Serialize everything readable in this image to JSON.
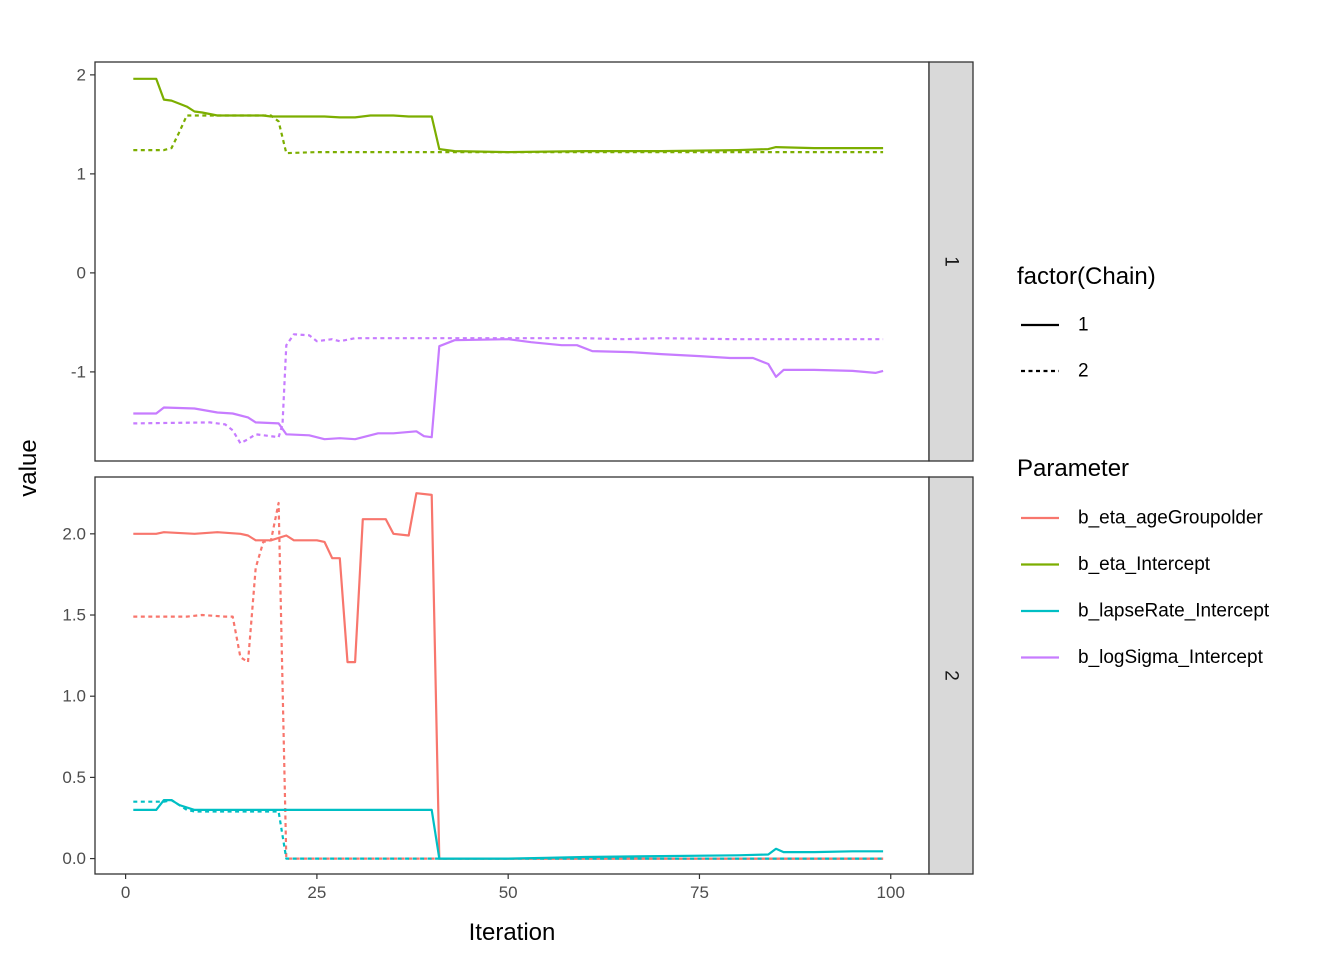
{
  "chart_data": {
    "type": "line",
    "xlabel": "Iteration",
    "ylabel": "value",
    "xlim": [
      -4,
      105
    ],
    "xticks": [
      0,
      25,
      50,
      75,
      100
    ],
    "grid": false,
    "legend_position": "right",
    "linetype_legend": {
      "title": "factor(Chain)",
      "entries": [
        {
          "label": "1",
          "dash": "solid"
        },
        {
          "label": "2",
          "dash": "dotted"
        }
      ]
    },
    "color_legend": {
      "title": "Parameter",
      "entries": [
        {
          "label": "b_eta_ageGroupolder",
          "color": "#F8766D"
        },
        {
          "label": "b_eta_Intercept",
          "color": "#7CAE00"
        },
        {
          "label": "b_lapseRate_Intercept",
          "color": "#00BFC4"
        },
        {
          "label": "b_logSigma_Intercept",
          "color": "#C77CFF"
        }
      ]
    },
    "panels": [
      {
        "strip": "1",
        "ylim": [
          -1.9,
          2.13
        ],
        "yticks": [
          2,
          1,
          0,
          -1
        ],
        "yticklabels": [
          "2",
          "1",
          "0",
          "-1"
        ],
        "series": [
          {
            "parameter": "b_eta_Intercept",
            "chain": "1",
            "color": "#7CAE00",
            "dash": "solid",
            "points": [
              [
                1,
                1.96
              ],
              [
                4,
                1.96
              ],
              [
                5,
                1.75
              ],
              [
                6,
                1.74
              ],
              [
                7,
                1.71
              ],
              [
                8,
                1.68
              ],
              [
                9,
                1.63
              ],
              [
                10,
                1.62
              ],
              [
                12,
                1.59
              ],
              [
                16,
                1.59
              ],
              [
                18,
                1.59
              ],
              [
                19,
                1.58
              ],
              [
                20,
                1.58
              ],
              [
                22,
                1.58
              ],
              [
                26,
                1.58
              ],
              [
                28,
                1.57
              ],
              [
                30,
                1.57
              ],
              [
                32,
                1.59
              ],
              [
                35,
                1.59
              ],
              [
                37,
                1.58
              ],
              [
                40,
                1.58
              ],
              [
                41,
                1.25
              ],
              [
                43,
                1.23
              ],
              [
                50,
                1.22
              ],
              [
                60,
                1.23
              ],
              [
                70,
                1.23
              ],
              [
                80,
                1.24
              ],
              [
                84,
                1.25
              ],
              [
                85,
                1.27
              ],
              [
                90,
                1.26
              ],
              [
                99,
                1.26
              ]
            ]
          },
          {
            "parameter": "b_eta_Intercept",
            "chain": "2",
            "color": "#7CAE00",
            "dash": "dotted",
            "points": [
              [
                1,
                1.24
              ],
              [
                5,
                1.24
              ],
              [
                6,
                1.26
              ],
              [
                7,
                1.42
              ],
              [
                8,
                1.59
              ],
              [
                12,
                1.59
              ],
              [
                16,
                1.59
              ],
              [
                19,
                1.59
              ],
              [
                20,
                1.53
              ],
              [
                21,
                1.21
              ],
              [
                25,
                1.22
              ],
              [
                30,
                1.22
              ],
              [
                40,
                1.22
              ],
              [
                50,
                1.22
              ],
              [
                60,
                1.22
              ],
              [
                70,
                1.22
              ],
              [
                80,
                1.22
              ],
              [
                90,
                1.22
              ],
              [
                99,
                1.22
              ]
            ]
          },
          {
            "parameter": "b_logSigma_Intercept",
            "chain": "1",
            "color": "#C77CFF",
            "dash": "solid",
            "points": [
              [
                1,
                -1.42
              ],
              [
                4,
                -1.42
              ],
              [
                5,
                -1.36
              ],
              [
                9,
                -1.37
              ],
              [
                12,
                -1.41
              ],
              [
                14,
                -1.42
              ],
              [
                16,
                -1.46
              ],
              [
                17,
                -1.51
              ],
              [
                20,
                -1.52
              ],
              [
                21,
                -1.63
              ],
              [
                24,
                -1.64
              ],
              [
                26,
                -1.68
              ],
              [
                28,
                -1.67
              ],
              [
                30,
                -1.68
              ],
              [
                33,
                -1.62
              ],
              [
                35,
                -1.62
              ],
              [
                38,
                -1.6
              ],
              [
                39,
                -1.65
              ],
              [
                40,
                -1.66
              ],
              [
                41,
                -0.74
              ],
              [
                43,
                -0.68
              ],
              [
                50,
                -0.67
              ],
              [
                53,
                -0.7
              ],
              [
                57,
                -0.73
              ],
              [
                59,
                -0.73
              ],
              [
                61,
                -0.79
              ],
              [
                66,
                -0.8
              ],
              [
                70,
                -0.82
              ],
              [
                75,
                -0.84
              ],
              [
                79,
                -0.86
              ],
              [
                82,
                -0.86
              ],
              [
                84,
                -0.92
              ],
              [
                85,
                -1.05
              ],
              [
                86,
                -0.98
              ],
              [
                90,
                -0.98
              ],
              [
                95,
                -0.99
              ],
              [
                98,
                -1.01
              ],
              [
                99,
                -0.99
              ]
            ]
          },
          {
            "parameter": "b_logSigma_Intercept",
            "chain": "2",
            "color": "#C77CFF",
            "dash": "dotted",
            "points": [
              [
                1,
                -1.52
              ],
              [
                11,
                -1.51
              ],
              [
                13,
                -1.53
              ],
              [
                14,
                -1.59
              ],
              [
                15,
                -1.72
              ],
              [
                16,
                -1.68
              ],
              [
                17,
                -1.63
              ],
              [
                20,
                -1.66
              ],
              [
                20.5,
                -1.53
              ],
              [
                21,
                -0.73
              ],
              [
                22,
                -0.62
              ],
              [
                24,
                -0.63
              ],
              [
                25,
                -0.69
              ],
              [
                27,
                -0.67
              ],
              [
                28,
                -0.69
              ],
              [
                30,
                -0.66
              ],
              [
                40,
                -0.66
              ],
              [
                50,
                -0.66
              ],
              [
                60,
                -0.66
              ],
              [
                65,
                -0.67
              ],
              [
                70,
                -0.66
              ],
              [
                80,
                -0.67
              ],
              [
                90,
                -0.67
              ],
              [
                99,
                -0.67
              ]
            ]
          }
        ]
      },
      {
        "strip": "2",
        "ylim": [
          -0.095,
          2.35
        ],
        "yticks": [
          2.0,
          1.5,
          1.0,
          0.5,
          0.0
        ],
        "yticklabels": [
          "2.0",
          "1.5",
          "1.0",
          "0.5",
          "0.0"
        ],
        "series": [
          {
            "parameter": "b_eta_ageGroupolder",
            "chain": "1",
            "color": "#F8766D",
            "dash": "solid",
            "points": [
              [
                1,
                2.0
              ],
              [
                4,
                2.0
              ],
              [
                5,
                2.01
              ],
              [
                9,
                2.0
              ],
              [
                12,
                2.01
              ],
              [
                15,
                2.0
              ],
              [
                16,
                1.99
              ],
              [
                17,
                1.96
              ],
              [
                19,
                1.96
              ],
              [
                21,
                1.99
              ],
              [
                22,
                1.96
              ],
              [
                25,
                1.96
              ],
              [
                26,
                1.95
              ],
              [
                27,
                1.85
              ],
              [
                28,
                1.85
              ],
              [
                29,
                1.21
              ],
              [
                30,
                1.21
              ],
              [
                31,
                2.09
              ],
              [
                34,
                2.09
              ],
              [
                35,
                2.0
              ],
              [
                37,
                1.99
              ],
              [
                38,
                2.25
              ],
              [
                40,
                2.24
              ],
              [
                41,
                0.0
              ],
              [
                50,
                0.0
              ],
              [
                60,
                0.0
              ],
              [
                70,
                0.0
              ],
              [
                80,
                0.0
              ],
              [
                90,
                0.0
              ],
              [
                99,
                0.0
              ]
            ]
          },
          {
            "parameter": "b_eta_ageGroupolder",
            "chain": "2",
            "color": "#F8766D",
            "dash": "dotted",
            "points": [
              [
                1,
                1.49
              ],
              [
                8,
                1.49
              ],
              [
                10,
                1.5
              ],
              [
                13,
                1.49
              ],
              [
                14,
                1.49
              ],
              [
                15,
                1.24
              ],
              [
                16,
                1.21
              ],
              [
                17,
                1.79
              ],
              [
                18,
                1.95
              ],
              [
                19,
                1.96
              ],
              [
                20,
                2.19
              ],
              [
                21,
                0.0
              ],
              [
                30,
                0.0
              ],
              [
                40,
                0.0
              ],
              [
                50,
                0.0
              ],
              [
                60,
                0.0
              ],
              [
                70,
                0.0
              ],
              [
                80,
                0.0
              ],
              [
                90,
                0.0
              ],
              [
                99,
                0.0
              ]
            ]
          },
          {
            "parameter": "b_lapseRate_Intercept",
            "chain": "1",
            "color": "#00BFC4",
            "dash": "solid",
            "points": [
              [
                1,
                0.3
              ],
              [
                4,
                0.3
              ],
              [
                5,
                0.36
              ],
              [
                6,
                0.36
              ],
              [
                7,
                0.33
              ],
              [
                9,
                0.3
              ],
              [
                12,
                0.3
              ],
              [
                20,
                0.3
              ],
              [
                30,
                0.3
              ],
              [
                35,
                0.3
              ],
              [
                40,
                0.3
              ],
              [
                41,
                0.0
              ],
              [
                50,
                0.0
              ],
              [
                55,
                0.005
              ],
              [
                60,
                0.01
              ],
              [
                70,
                0.015
              ],
              [
                80,
                0.02
              ],
              [
                84,
                0.025
              ],
              [
                85,
                0.06
              ],
              [
                86,
                0.04
              ],
              [
                90,
                0.04
              ],
              [
                95,
                0.045
              ],
              [
                99,
                0.045
              ]
            ]
          },
          {
            "parameter": "b_lapseRate_Intercept",
            "chain": "2",
            "color": "#00BFC4",
            "dash": "dotted",
            "points": [
              [
                1,
                0.35
              ],
              [
                4,
                0.35
              ],
              [
                5,
                0.35
              ],
              [
                6,
                0.36
              ],
              [
                7,
                0.33
              ],
              [
                8,
                0.3
              ],
              [
                9,
                0.29
              ],
              [
                12,
                0.29
              ],
              [
                16,
                0.29
              ],
              [
                19,
                0.29
              ],
              [
                20,
                0.29
              ],
              [
                21,
                0.0
              ],
              [
                30,
                0.0
              ],
              [
                40,
                0.0
              ],
              [
                50,
                0.0
              ],
              [
                60,
                0.0
              ],
              [
                70,
                0.0
              ],
              [
                80,
                0.0
              ],
              [
                90,
                0.0
              ],
              [
                99,
                0.0
              ]
            ]
          }
        ]
      }
    ]
  }
}
